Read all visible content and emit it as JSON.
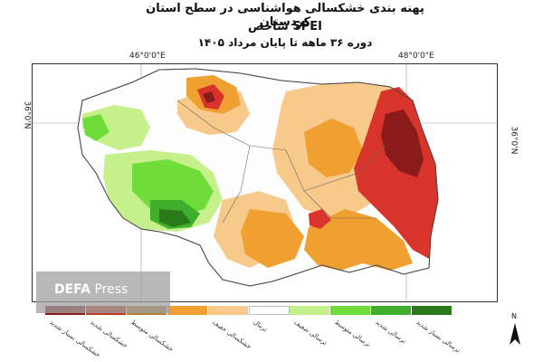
{
  "title": {
    "line1": "پهنه بندی خشکسالی هواشناسی در سطح استان کردستان",
    "line2": "شاخص SPEI",
    "line3": "دوره ۳۶ ماهه تا پایان مرداد ۱۴۰۵"
  },
  "graticule": {
    "lon_left": "46°0'0\"E",
    "lon_right": "48°0'0\"E",
    "lat_left": "36°0'N",
    "lat_right": "36°0'N"
  },
  "legend": [
    {
      "label": "خشکسالی بسیار شدید",
      "color": "#8b1a1a"
    },
    {
      "label": "خشکسالی شدید",
      "color": "#c0392b"
    },
    {
      "label": "خشکسالی متوسط",
      "color": "#b0803a"
    },
    {
      "label": "",
      "color": "#f0a030"
    },
    {
      "label": "خشکسالی خفیف",
      "color": "#f7c98a"
    },
    {
      "label": "نرمال",
      "color": "#ffffff"
    },
    {
      "label": "ترسالی ضعیف",
      "color": "#c6f08c"
    },
    {
      "label": "ترسالی متوسط",
      "color": "#6fdc3a"
    },
    {
      "label": "ترسالی شدید",
      "color": "#3fae2a"
    },
    {
      "label": "ترسالی بسیار شدید",
      "color": "#2a7a1c"
    }
  ],
  "watermark": {
    "brand": "DEFA",
    "suffix": "Press"
  },
  "north_arrow": {
    "label": "N",
    "icon": "north-arrow-icon"
  }
}
